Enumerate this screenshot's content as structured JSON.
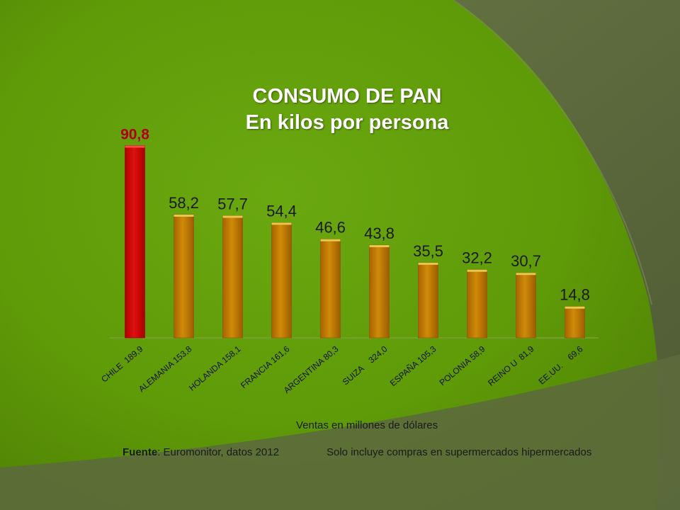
{
  "chart_data": {
    "type": "bar",
    "title": "CONSUMO DE PAN",
    "subtitle": "En kilos por persona",
    "xlabel": "Ventas en millones de dólares",
    "ylabel": "",
    "categories": [
      "CHILE  189,9",
      "ALEMANIA 153,8",
      "HOLANDA 158,1",
      "FRANCIA 161,6",
      "ARGENTINA 80,3",
      "SUIZA    324,0",
      "ESPAÑA 105,3",
      "POLONIA 58,9",
      "REINO U  81,9",
      "EE.UU.    69,6"
    ],
    "values": [
      90.8,
      58.2,
      57.7,
      54.4,
      46.6,
      43.8,
      35.5,
      32.2,
      30.7,
      14.8
    ],
    "value_labels": [
      "90,8",
      "58,2",
      "57,7",
      "54,4",
      "46,6",
      "43,8",
      "35,5",
      "32,2",
      "30,7",
      "14,8"
    ],
    "highlight_index": 0,
    "ylim": [
      0,
      100
    ],
    "grid": false,
    "colors": {
      "highlight": "#d40000",
      "bar": "#c87d00",
      "highlight_label": "#b00000",
      "label": "#1a1a1a"
    }
  },
  "footer": {
    "source_label": "Fuente",
    "source_text": ":  Euromonitor, datos 2012",
    "note": "Solo incluye compras en supermercados  hipermercados"
  },
  "theme": {
    "green": "#5e9c0a",
    "dark": "#5a6b3d"
  }
}
